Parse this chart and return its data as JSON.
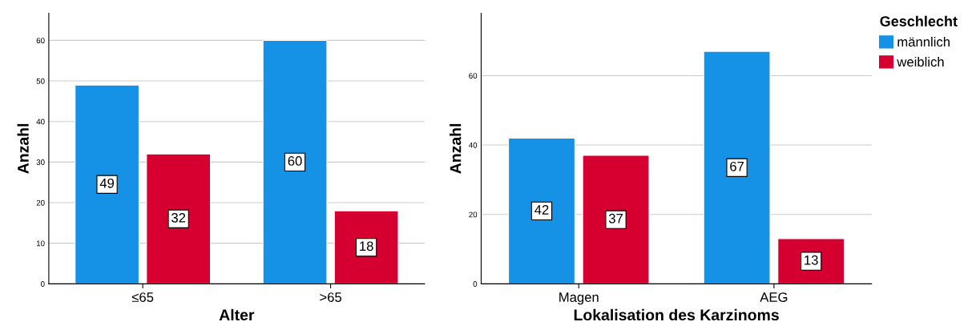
{
  "chart_data": [
    {
      "type": "bar",
      "xlabel": "Alter",
      "ylabel": "Anzahl",
      "categories": [
        "≤65",
        ">65"
      ],
      "series": [
        {
          "color": "#1591e6",
          "values": [
            49,
            60
          ]
        },
        {
          "color": "#d5002f",
          "values": [
            32,
            18
          ]
        }
      ],
      "ylim": [
        0,
        66.7
      ],
      "yticks": [
        0,
        10,
        20,
        30,
        40,
        50,
        60
      ],
      "grid": "y",
      "data_labels": true,
      "legend": false
    },
    {
      "type": "bar",
      "xlabel": "Lokalisation des Karzinoms",
      "ylabel": "Anzahl",
      "legend_title": "Geschlecht",
      "categories": [
        "Magen",
        "AEG"
      ],
      "series": [
        {
          "name": "männlich",
          "color": "#1591e6",
          "values": [
            42,
            67
          ]
        },
        {
          "name": "weiblich",
          "color": "#d5002f",
          "values": [
            37,
            13
          ]
        }
      ],
      "ylim": [
        0,
        78
      ],
      "yticks": [
        0,
        20,
        40,
        60
      ],
      "grid": "y",
      "data_labels": true,
      "legend": "top right"
    }
  ]
}
